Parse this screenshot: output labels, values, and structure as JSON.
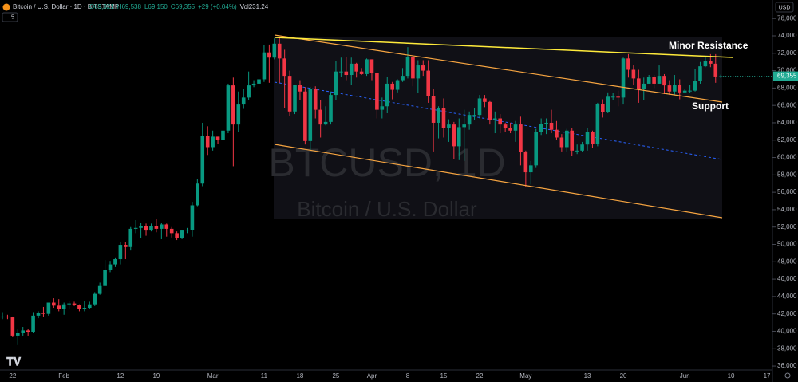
{
  "chart_data": {
    "type": "candlestick",
    "header": {
      "symbol": "Bitcoin / U.S. Dollar · 1D · BITSTAMP",
      "ohlc": [
        "O69,321",
        "H69,538",
        "L69,150",
        "C69,355",
        "+29 (+0.04%)",
        "Vol231.24"
      ],
      "indicators": "5",
      "currency": "USD"
    },
    "watermark": {
      "ticker": "BTCUSD, 1D",
      "name": "Bitcoin / U.S. Dollar"
    },
    "annotations": [
      "Minor Resistance",
      "Support"
    ],
    "up_color": "#089981",
    "down_color": "#f23645",
    "grid": false,
    "last_price": {
      "value": 69355,
      "label": "69,355",
      "color": "#22ab94"
    },
    "ylim": [
      35730,
      78130
    ],
    "yticks": [
      {
        "value": 36000,
        "label": "36,000"
      },
      {
        "value": 38000,
        "label": "38,000"
      },
      {
        "value": 40000,
        "label": "40,000"
      },
      {
        "value": 42000,
        "label": "42,000"
      },
      {
        "value": 44000,
        "label": "44,000"
      },
      {
        "value": 46000,
        "label": "46,000"
      },
      {
        "value": 48000,
        "label": "48,000"
      },
      {
        "value": 50000,
        "label": "50,000"
      },
      {
        "value": 52000,
        "label": "52,000"
      },
      {
        "value": 54000,
        "label": "54,000"
      },
      {
        "value": 56000,
        "label": "56,000"
      },
      {
        "value": 58000,
        "label": "58,000"
      },
      {
        "value": 60000,
        "label": "60,000"
      },
      {
        "value": 62000,
        "label": "62,000"
      },
      {
        "value": 64000,
        "label": "64,000"
      },
      {
        "value": 66000,
        "label": "66,000"
      },
      {
        "value": 68000,
        "label": "68,000"
      },
      {
        "value": 70000,
        "label": "70,000"
      },
      {
        "value": 72000,
        "label": "72,000"
      },
      {
        "value": 74000,
        "label": "74,000"
      },
      {
        "value": 76000,
        "label": "76,000"
      }
    ],
    "categories": [
      null,
      null,
      "22",
      null,
      null,
      null,
      null,
      null,
      null,
      null,
      null,
      null,
      "Feb",
      null,
      null,
      null,
      null,
      null,
      null,
      null,
      null,
      null,
      null,
      "12",
      null,
      null,
      null,
      null,
      null,
      null,
      "19",
      null,
      null,
      null,
      null,
      null,
      null,
      null,
      null,
      null,
      null,
      "Mar",
      null,
      null,
      null,
      null,
      null,
      null,
      null,
      null,
      null,
      "11",
      null,
      null,
      null,
      null,
      null,
      null,
      "18",
      null,
      null,
      null,
      null,
      null,
      null,
      "25",
      null,
      null,
      null,
      null,
      null,
      null,
      "Apr",
      null,
      null,
      null,
      null,
      null,
      null,
      "8",
      null,
      null,
      null,
      null,
      null,
      null,
      "15",
      null,
      null,
      null,
      null,
      null,
      null,
      "22",
      null,
      null,
      null,
      null,
      null,
      null,
      null,
      null,
      "May",
      null,
      null,
      null,
      null,
      null,
      null,
      null,
      null,
      null,
      null,
      null,
      "13",
      null,
      null,
      null,
      null,
      null,
      null,
      "20",
      null,
      null,
      null,
      null,
      null,
      null,
      null,
      null,
      null,
      null,
      null,
      "Jun",
      null,
      null,
      null,
      null,
      null,
      null,
      null,
      null,
      "10",
      null,
      null,
      null,
      null,
      null,
      null,
      "17",
      null
    ],
    "open": [
      41600,
      41700,
      41600,
      39500,
      39850,
      40100,
      39950,
      41800,
      42100,
      42000,
      43300,
      42950,
      42600,
      43100,
      43200,
      43000,
      42600,
      42700,
      43100,
      44300,
      45300,
      47100,
      47700,
      48300,
      49950,
      49700,
      51800,
      51900,
      52100,
      51600,
      52100,
      51800,
      52300,
      51800,
      51300,
      50700,
      51600,
      51700,
      54500,
      57000,
      62500,
      61200,
      62400,
      62000,
      63100,
      68300,
      63800,
      66100,
      66900,
      68300,
      68500,
      69000,
      72100,
      71500,
      73100,
      71400,
      69400,
      65300,
      68400,
      67600,
      61900,
      67900,
      65500,
      63800,
      64100,
      67200,
      69900,
      69900,
      69500,
      70800,
      69900,
      69600,
      71300,
      69700,
      65500,
      65900,
      68500,
      67800,
      68900,
      69400,
      71600,
      69100,
      70600,
      70000,
      67100,
      64000,
      65700,
      63400,
      63800,
      61300,
      63500,
      63800,
      64900,
      64900,
      66800,
      66400,
      64300,
      64500,
      63800,
      63400,
      63100,
      63800,
      60600,
      58300,
      59100,
      62900,
      63900,
      64000,
      63200,
      62300,
      61200,
      63100,
      60800,
      60800,
      61500,
      62900,
      61600,
      66200,
      65200,
      67000,
      67000,
      66900,
      71400,
      70100,
      69100,
      67900,
      68500,
      69300,
      68500,
      69400,
      68300,
      67600,
      68400,
      67500,
      67700,
      67700,
      68800,
      70500,
      71100,
      70800,
      69321,
      null,
      null,
      null,
      null,
      null,
      null,
      null,
      null,
      null,
      null
    ],
    "high": [
      42200,
      41900,
      41700,
      40200,
      40500,
      40300,
      42200,
      42300,
      42800,
      43300,
      43800,
      43700,
      43300,
      43500,
      43400,
      43100,
      43500,
      43400,
      44500,
      45600,
      48200,
      48100,
      48500,
      50300,
      50300,
      52000,
      52800,
      52500,
      52400,
      52400,
      52900,
      52500,
      52400,
      52000,
      51500,
      51700,
      51900,
      54900,
      57500,
      64000,
      63600,
      63100,
      62400,
      63200,
      68500,
      69200,
      67600,
      67900,
      69900,
      68900,
      70000,
      72900,
      73000,
      73700,
      73800,
      72400,
      70000,
      68400,
      68900,
      68100,
      68100,
      68200,
      66600,
      65900,
      67600,
      71100,
      71500,
      71600,
      71500,
      70900,
      70300,
      71400,
      71300,
      69700,
      66900,
      69300,
      68700,
      69000,
      70300,
      72700,
      71700,
      71200,
      71200,
      71200,
      67900,
      65900,
      66800,
      64400,
      64100,
      64500,
      65500,
      65300,
      65700,
      67200,
      67200,
      66500,
      65300,
      65000,
      64000,
      64000,
      64200,
      64700,
      60800,
      59600,
      63300,
      64500,
      64500,
      65500,
      64200,
      62700,
      63300,
      63400,
      61500,
      61800,
      63400,
      63100,
      66300,
      66700,
      67500,
      67400,
      67700,
      71500,
      71900,
      70600,
      70100,
      69200,
      69500,
      69500,
      70600,
      69600,
      68900,
      69500,
      69000,
      67900,
      68400,
      70200,
      71000,
      71700,
      71900,
      71900,
      69538,
      null,
      null,
      null,
      null,
      null,
      null,
      null,
      null,
      null,
      null
    ],
    "low": [
      41400,
      41400,
      39400,
      38500,
      39500,
      39500,
      39800,
      41500,
      41700,
      41800,
      42700,
      42300,
      41900,
      42600,
      42900,
      42300,
      42300,
      42600,
      42900,
      44200,
      45300,
      46800,
      47400,
      47700,
      48300,
      49300,
      51300,
      50700,
      51000,
      51500,
      51400,
      50600,
      50900,
      50800,
      50500,
      50600,
      51300,
      50900,
      54400,
      56700,
      60300,
      60800,
      61600,
      61300,
      62800,
      59000,
      62900,
      65600,
      66600,
      68100,
      68200,
      68700,
      68600,
      71300,
      68600,
      65700,
      64800,
      65000,
      66600,
      61500,
      60800,
      64500,
      62300,
      63700,
      63800,
      66600,
      69300,
      68900,
      68400,
      69200,
      69500,
      69400,
      68900,
      64500,
      64500,
      65100,
      66700,
      67500,
      68700,
      69100,
      68200,
      67400,
      69400,
      66300,
      60700,
      62200,
      62300,
      61800,
      59800,
      59700,
      59600,
      63200,
      64300,
      64500,
      65800,
      63800,
      62800,
      62800,
      62900,
      62800,
      61800,
      59100,
      56600,
      56900,
      58800,
      62600,
      62700,
      62800,
      62000,
      60700,
      60700,
      60200,
      60400,
      60600,
      60800,
      61100,
      61300,
      64600,
      65100,
      66600,
      65900,
      66100,
      69200,
      68400,
      66300,
      66600,
      68500,
      68000,
      68500,
      67300,
      67200,
      67200,
      66700,
      67400,
      67400,
      67600,
      68500,
      70400,
      70400,
      68600,
      69150,
      null,
      null,
      null,
      null,
      null,
      null,
      null,
      null,
      null,
      null
    ],
    "close": [
      41700,
      41600,
      39500,
      39850,
      40100,
      39950,
      41800,
      42100,
      42000,
      43300,
      42950,
      42600,
      43100,
      43200,
      43000,
      42600,
      42700,
      43100,
      44300,
      45300,
      47100,
      47700,
      48300,
      49950,
      49700,
      51800,
      51900,
      52100,
      51600,
      52100,
      51800,
      52300,
      51800,
      51300,
      50700,
      51600,
      51700,
      54500,
      57000,
      62500,
      61200,
      62400,
      62000,
      63100,
      68300,
      63800,
      66100,
      66900,
      68300,
      68500,
      69000,
      72100,
      71500,
      73100,
      71400,
      69400,
      65300,
      68400,
      67600,
      61900,
      67900,
      65500,
      63800,
      64100,
      67200,
      69900,
      69900,
      69500,
      70800,
      69900,
      69600,
      71300,
      69700,
      65500,
      65900,
      68500,
      67800,
      68900,
      69400,
      71600,
      69100,
      70600,
      70000,
      67100,
      64000,
      65700,
      63400,
      63800,
      61300,
      63500,
      63800,
      64900,
      64900,
      66800,
      66400,
      64300,
      64500,
      63800,
      63400,
      63100,
      63800,
      60600,
      58300,
      59100,
      62900,
      63900,
      64000,
      63200,
      62300,
      61200,
      63100,
      60800,
      60800,
      61500,
      62900,
      61600,
      66200,
      65200,
      67000,
      67000,
      66900,
      71400,
      70100,
      69100,
      67900,
      68500,
      69300,
      68500,
      69400,
      68300,
      67600,
      68400,
      67500,
      67700,
      67700,
      68800,
      70500,
      71100,
      70800,
      69326,
      69355,
      null,
      null,
      null,
      null,
      null,
      null,
      null,
      null,
      null,
      null
    ]
  }
}
